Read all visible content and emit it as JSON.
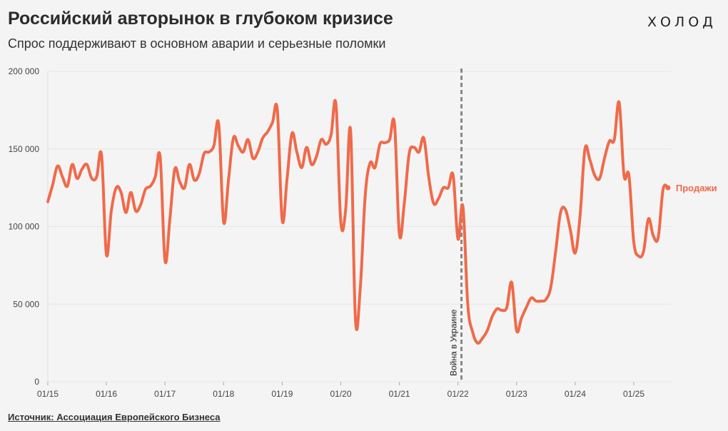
{
  "header": {
    "title": "Российский авторынок в глубоком кризисе",
    "subtitle": "Спрос поддерживают в основном аварии и серьезные поломки",
    "logo": "ХОЛОД"
  },
  "footer": {
    "source": "Источник: Ассоциация Европейского Бизнеса"
  },
  "colors": {
    "line": "#f06a4a",
    "annotation": "#888888",
    "grid": "#e6e6e6"
  },
  "chart_data": {
    "type": "line",
    "title": "Российский авторынок в глубоком кризисе",
    "subtitle": "Спрос поддерживают в основном аварии и серьезные поломки",
    "xlabel": "",
    "ylabel": "",
    "ylim": [
      0,
      200000
    ],
    "xlim": [
      "2015-01",
      "2025-08"
    ],
    "grid": true,
    "y_ticks": [
      {
        "value": 0,
        "label": "0"
      },
      {
        "value": 50000,
        "label": "50 000"
      },
      {
        "value": 100000,
        "label": "100 000"
      },
      {
        "value": 150000,
        "label": "150 000"
      },
      {
        "value": 200000,
        "label": "200 000"
      }
    ],
    "x_ticks": [
      {
        "value": "2015-01",
        "label": "01/15"
      },
      {
        "value": "2016-01",
        "label": "01/16"
      },
      {
        "value": "2017-01",
        "label": "01/17"
      },
      {
        "value": "2018-01",
        "label": "01/18"
      },
      {
        "value": "2019-01",
        "label": "01/19"
      },
      {
        "value": "2020-01",
        "label": "01/20"
      },
      {
        "value": "2021-01",
        "label": "01/21"
      },
      {
        "value": "2022-01",
        "label": "01/22"
      },
      {
        "value": "2023-01",
        "label": "01/23"
      },
      {
        "value": "2024-01",
        "label": "01/24"
      },
      {
        "value": "2025-01",
        "label": "01/25"
      }
    ],
    "annotations": [
      {
        "x": "2022-02",
        "label": "Война в Украине",
        "style": "dashed-vertical"
      }
    ],
    "series": [
      {
        "name": "Продажи",
        "x": [
          "2015-01",
          "2015-02",
          "2015-03",
          "2015-04",
          "2015-05",
          "2015-06",
          "2015-07",
          "2015-08",
          "2015-09",
          "2015-10",
          "2015-11",
          "2015-12",
          "2016-01",
          "2016-02",
          "2016-03",
          "2016-04",
          "2016-05",
          "2016-06",
          "2016-07",
          "2016-08",
          "2016-09",
          "2016-10",
          "2016-11",
          "2016-12",
          "2017-01",
          "2017-02",
          "2017-03",
          "2017-04",
          "2017-05",
          "2017-06",
          "2017-07",
          "2017-08",
          "2017-09",
          "2017-10",
          "2017-11",
          "2017-12",
          "2018-01",
          "2018-02",
          "2018-03",
          "2018-04",
          "2018-05",
          "2018-06",
          "2018-07",
          "2018-08",
          "2018-09",
          "2018-10",
          "2018-11",
          "2018-12",
          "2019-01",
          "2019-02",
          "2019-03",
          "2019-04",
          "2019-05",
          "2019-06",
          "2019-07",
          "2019-08",
          "2019-09",
          "2019-10",
          "2019-11",
          "2019-12",
          "2020-01",
          "2020-02",
          "2020-03",
          "2020-04",
          "2020-05",
          "2020-06",
          "2020-07",
          "2020-08",
          "2020-09",
          "2020-10",
          "2020-11",
          "2020-12",
          "2021-01",
          "2021-02",
          "2021-03",
          "2021-04",
          "2021-05",
          "2021-06",
          "2021-07",
          "2021-08",
          "2021-09",
          "2021-10",
          "2021-11",
          "2021-12",
          "2022-01",
          "2022-02",
          "2022-03",
          "2022-04",
          "2022-05",
          "2022-06",
          "2022-07",
          "2022-08",
          "2022-09",
          "2022-10",
          "2022-11",
          "2022-12",
          "2023-01",
          "2023-02",
          "2023-03",
          "2023-04",
          "2023-05",
          "2023-06",
          "2023-07",
          "2023-08",
          "2023-09",
          "2023-10",
          "2023-11",
          "2023-12",
          "2024-01",
          "2024-02",
          "2024-03",
          "2024-04",
          "2024-05",
          "2024-06",
          "2024-07",
          "2024-08",
          "2024-09",
          "2024-10",
          "2024-11",
          "2024-12",
          "2025-01",
          "2025-02",
          "2025-03",
          "2025-04",
          "2025-05",
          "2025-06",
          "2025-07",
          "2025-08"
        ],
        "values": [
          116000,
          127000,
          139000,
          132000,
          126000,
          140000,
          131000,
          137000,
          140000,
          131000,
          132000,
          146000,
          82000,
          110000,
          125000,
          122000,
          109000,
          122000,
          110000,
          114000,
          124000,
          126000,
          132000,
          145000,
          78000,
          105000,
          137000,
          129000,
          125000,
          140000,
          130000,
          134000,
          147000,
          148000,
          152000,
          166000,
          103000,
          130000,
          157000,
          152000,
          148000,
          156000,
          144000,
          148000,
          157000,
          161000,
          167000,
          175000,
          104000,
          131000,
          160000,
          148000,
          138000,
          151000,
          140000,
          145000,
          156000,
          153000,
          159000,
          179000,
          103000,
          111000,
          162000,
          40000,
          61000,
          120000,
          141000,
          138000,
          153000,
          154000,
          156000,
          166000,
          95000,
          115000,
          147000,
          151000,
          148000,
          157000,
          132000,
          115000,
          118000,
          125000,
          125000,
          133000,
          92000,
          113000,
          50000,
          32000,
          25000,
          28000,
          33000,
          42000,
          47000,
          46000,
          48000,
          64000,
          33000,
          41000,
          48000,
          54000,
          52000,
          52000,
          53000,
          61000,
          84000,
          109000,
          111000,
          98000,
          83000,
          107000,
          150000,
          143000,
          133000,
          131000,
          144000,
          155000,
          156000,
          180000,
          133000,
          133000,
          90000,
          81000,
          84000,
          105000,
          94000,
          93000,
          124000,
          125000
        ]
      }
    ]
  }
}
